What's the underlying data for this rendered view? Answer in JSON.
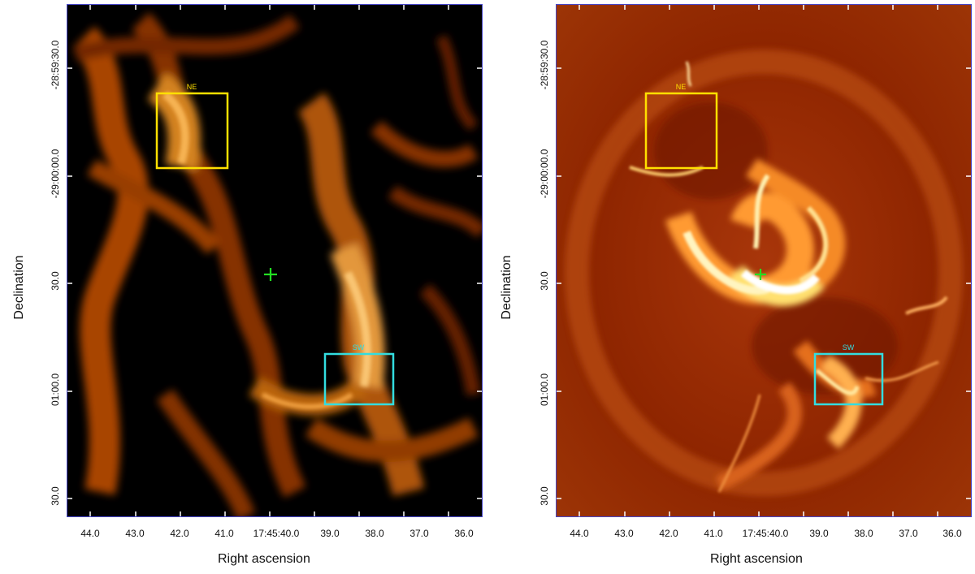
{
  "colors": {
    "box_ne": "#ffe000",
    "box_sw": "#33dde0",
    "marker": "#22e022",
    "axis_frame": "#4646c8",
    "left_background": "#000000",
    "right_background": "#8b1c00"
  },
  "panels": [
    {
      "ylabel": "Declination",
      "xlabel": "Right ascension",
      "y_ticks": [
        "-28:59:30.0",
        "-29:00:00.0",
        "30.0",
        "01:00.0",
        "30.0"
      ],
      "x_ticks": [
        "44.0",
        "43.0",
        "42.0",
        "41.0",
        "17:45:40.0",
        "39.0",
        "38.0",
        "37.0",
        "36.0"
      ],
      "regions": [
        {
          "label": "NE",
          "color_key": "box_ne"
        },
        {
          "label": "SW",
          "color_key": "box_sw"
        }
      ],
      "marker": "center-cross"
    },
    {
      "ylabel": "Declination",
      "xlabel": "Right ascension",
      "y_ticks": [
        "-28:59:30.0",
        "-29:00:00.0",
        "30.0",
        "01:00.0",
        "30.0"
      ],
      "x_ticks": [
        "44.0",
        "43.0",
        "42.0",
        "41.0",
        "17:45:40.0",
        "39.0",
        "38.0",
        "37.0",
        "36.0"
      ],
      "regions": [
        {
          "label": "NE",
          "color_key": "box_ne"
        },
        {
          "label": "SW",
          "color_key": "box_sw"
        }
      ],
      "marker": "center-cross"
    }
  ]
}
